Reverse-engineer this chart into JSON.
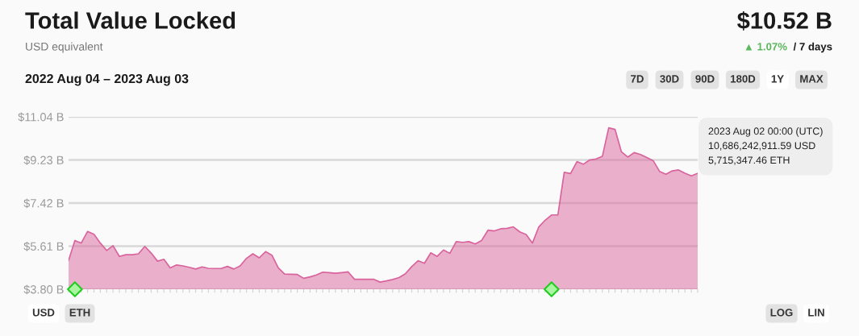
{
  "chart_data": {
    "type": "area",
    "title": "Total Value Locked",
    "subtitle": "USD equivalent",
    "annotations": [
      "$10.52 B",
      "▲ 1.07%",
      "/ 7 days",
      "2022 Aug 04 – 2023 Aug 03",
      "7D",
      "30D",
      "90D",
      "180D",
      "1Y",
      "MAX",
      "USD",
      "ETH",
      "LOG",
      "LIN",
      "2023 Aug 02 00:00 (UTC)\n10,686,242,911.59 USD\n5,715,347.46 ETH"
    ],
    "categories": [
      null,
      null,
      null,
      null,
      null,
      null,
      null,
      null,
      null,
      null,
      null,
      null,
      null,
      null,
      null,
      null,
      null,
      null,
      null,
      null,
      null,
      null,
      null,
      null,
      null,
      null,
      null,
      null,
      null,
      null,
      null,
      null,
      null,
      null,
      null,
      null,
      null,
      null,
      null,
      null,
      null,
      null,
      null,
      null,
      null,
      null,
      null,
      null,
      null,
      null,
      null,
      null,
      null,
      null,
      null,
      null,
      null,
      null,
      null,
      null,
      null,
      null,
      null,
      null,
      null,
      null,
      null,
      null,
      null,
      null,
      null,
      null,
      null,
      null,
      null,
      null,
      null,
      null,
      null,
      null,
      null,
      null,
      null,
      null,
      null,
      null,
      null,
      null,
      null,
      null,
      null,
      null,
      null,
      null,
      null,
      null,
      null,
      null,
      null,
      null
    ],
    "ylim": [
      3.8,
      11.04
    ],
    "yticks": [
      {
        "value": 3.8,
        "label": "$3.80 B"
      },
      {
        "value": 5.61,
        "label": "$5.61 B"
      },
      {
        "value": 7.42,
        "label": "$7.42 B"
      },
      {
        "value": 9.23,
        "label": "$9.23 B"
      },
      {
        "value": 11.04,
        "label": "$11.04 B"
      }
    ],
    "grid": "y",
    "tick_labels": "y",
    "series": [
      {
        "color": "#d9639c",
        "values": [
          5.01,
          5.85,
          5.74,
          6.23,
          6.11,
          5.74,
          5.43,
          5.63,
          5.18,
          5.25,
          5.25,
          5.29,
          5.6,
          5.32,
          4.98,
          5.06,
          4.7,
          4.82,
          4.78,
          4.72,
          4.65,
          4.74,
          4.68,
          4.67,
          4.67,
          4.76,
          4.65,
          4.78,
          5.1,
          5.29,
          5.12,
          5.38,
          5.23,
          4.7,
          4.44,
          4.43,
          4.42,
          4.26,
          4.32,
          4.4,
          4.52,
          4.5,
          4.47,
          4.5,
          4.53,
          4.22,
          4.22,
          4.22,
          4.22,
          4.1,
          4.15,
          4.21,
          4.29,
          4.45,
          4.75,
          5.0,
          4.89,
          5.33,
          5.18,
          5.45,
          5.31,
          5.8,
          5.77,
          5.8,
          5.7,
          5.85,
          6.28,
          6.25,
          6.34,
          6.36,
          6.42,
          6.21,
          6.1,
          5.74,
          6.42,
          6.7,
          6.92,
          6.92,
          8.71,
          8.66,
          9.16,
          9.05,
          9.23,
          9.27,
          9.38,
          10.58,
          10.51,
          9.57,
          9.35,
          9.54,
          9.46,
          9.33,
          9.2,
          8.75,
          8.63,
          8.77,
          8.81,
          8.67,
          8.56,
          8.67
        ]
      },
      {
        "type": "scatter",
        "color": "#aaf5a0",
        "marker": "diamond",
        "values": [
          null,
          3.8,
          null,
          null,
          null,
          null,
          null,
          null,
          null,
          null,
          null,
          null,
          null,
          null,
          null,
          null,
          null,
          null,
          null,
          null,
          null,
          null,
          null,
          null,
          null,
          null,
          null,
          null,
          null,
          null,
          null,
          null,
          null,
          null,
          null,
          null,
          null,
          null,
          null,
          null,
          null,
          null,
          null,
          null,
          null,
          null,
          null,
          null,
          null,
          null,
          null,
          null,
          null,
          null,
          null,
          null,
          null,
          null,
          null,
          null,
          null,
          null,
          null,
          null,
          null,
          null,
          null,
          null,
          null,
          null,
          null,
          null,
          null,
          null,
          null,
          null,
          3.8,
          null,
          null,
          null,
          null,
          null,
          null,
          null,
          null,
          null,
          null,
          null,
          null,
          null,
          null,
          null,
          null,
          null,
          null,
          null,
          null,
          null,
          null,
          null
        ]
      }
    ]
  }
}
